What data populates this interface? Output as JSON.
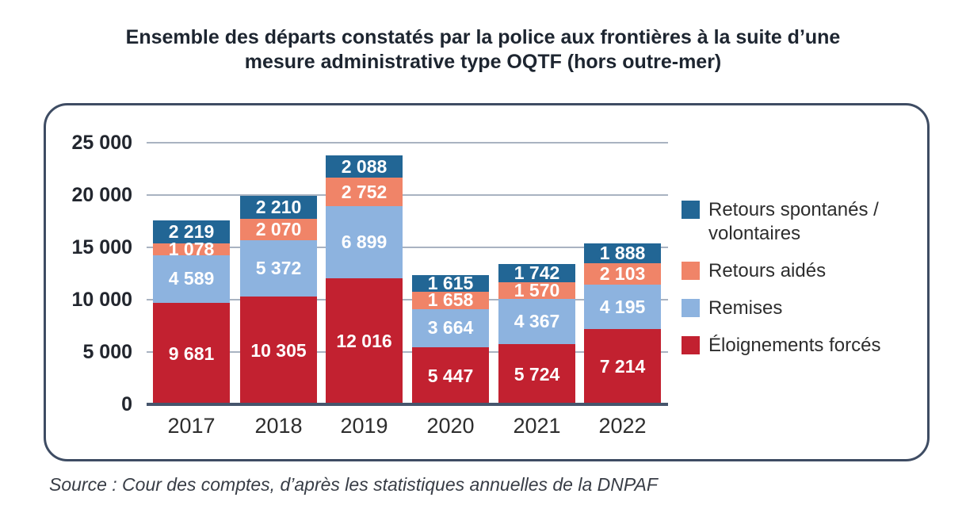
{
  "page": {
    "title": "Ensemble des départs constatés par la police aux frontières à la suite d’une mesure administrative type OQTF (hors outre-mer)",
    "source": "Source : Cour des comptes, d’après les statistiques annuelles de la DNPAF"
  },
  "chart_data": {
    "type": "bar",
    "stacked": true,
    "title": "Ensemble des départs constatés par la police aux frontières à la suite d’une mesure administrative type OQTF (hors outre-mer)",
    "categories": [
      "2017",
      "2018",
      "2019",
      "2020",
      "2021",
      "2022"
    ],
    "series": [
      {
        "name": "Éloignements forcés",
        "color": "#c22130",
        "values": [
          9681,
          10305,
          12016,
          5447,
          5724,
          7214
        ]
      },
      {
        "name": "Remises",
        "color": "#8db3df",
        "values": [
          4589,
          5372,
          6899,
          3664,
          4367,
          4195
        ]
      },
      {
        "name": "Retours aidés",
        "color": "#f08468",
        "values": [
          1078,
          2070,
          2752,
          1658,
          1570,
          2103
        ]
      },
      {
        "name": "Retours spontanés / volontaires",
        "color": "#226695",
        "values": [
          2219,
          2210,
          2088,
          1615,
          1742,
          1888
        ]
      }
    ],
    "totals": [
      17567,
      19957,
      23755,
      12384,
      13403,
      15400
    ],
    "legend_top_to_bottom": [
      "Retours spontanés / volontaires",
      "Retours aidés",
      "Remises",
      "Éloignements forcés"
    ],
    "y_ticks": [
      25000,
      20000,
      15000,
      10000,
      5000,
      0
    ],
    "y_tick_labels": [
      "25 000",
      "20 000",
      "15 000",
      "10 000",
      "5 000",
      "0"
    ],
    "ylim": [
      0,
      25000
    ],
    "grid": true,
    "legend_position": "right",
    "xlabel": "",
    "ylabel": "",
    "colors": {
      "grid": "#a9b3c1",
      "axis": "#46556c",
      "panel_border": "#3e4c63",
      "value_label": "#ffffff"
    }
  }
}
